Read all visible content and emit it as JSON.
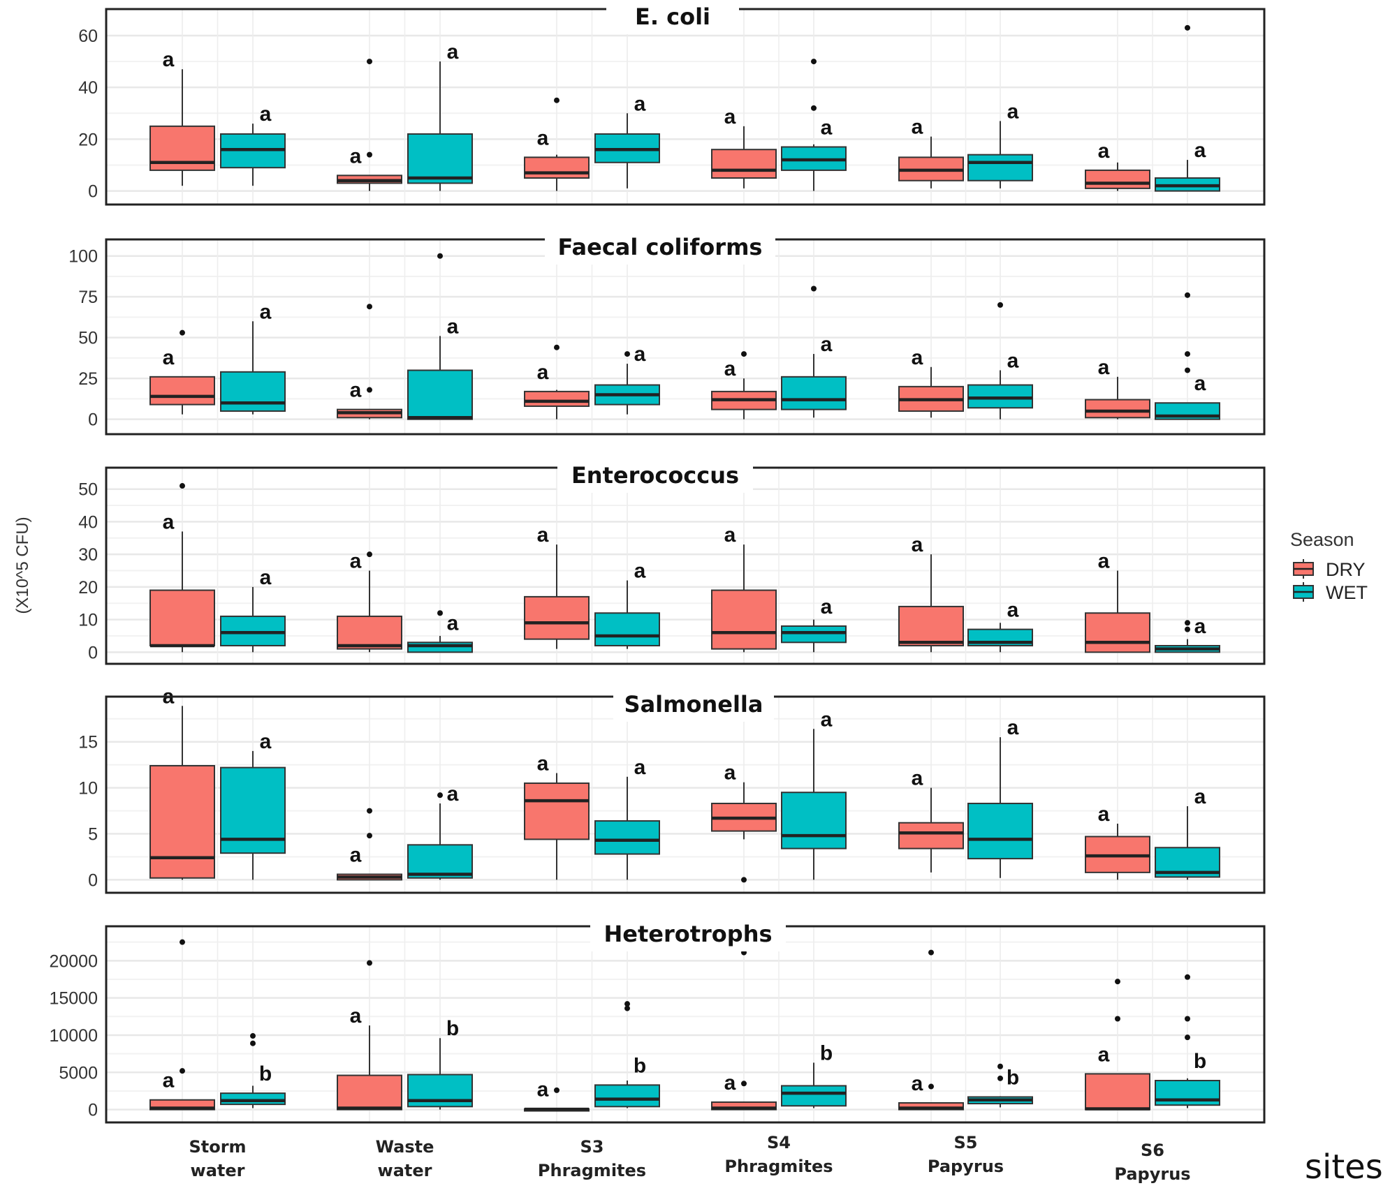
{
  "chart_data": {
    "type": "boxplot",
    "layout": "faceted-vertical",
    "ylabel": "(X10^5 CFU)",
    "xlabel": "sites",
    "legend": {
      "title": "Season",
      "position": "right",
      "entries": [
        {
          "name": "DRY",
          "color": "#F8766D"
        },
        {
          "name": "WET",
          "color": "#00BFC4"
        }
      ]
    },
    "categories": [
      "Storm\nwater",
      "Waste\nwater",
      "S3\nPhragmites",
      "S4\nPhragmites",
      "S5\nPapyrus",
      "S6\nPapyrus"
    ],
    "grid": true,
    "panels": [
      {
        "title": "E. coli",
        "ylim": [
          -2,
          67
        ],
        "yticks": [
          0,
          20,
          40,
          60
        ],
        "series": [
          {
            "name": "DRY",
            "boxes": [
              {
                "min": 2,
                "q1": 8,
                "median": 11,
                "q3": 25,
                "max": 47,
                "outliers": [],
                "letter": "a"
              },
              {
                "min": 0,
                "q1": 3,
                "median": 4,
                "q3": 6,
                "max": 6,
                "outliers": [
                  14,
                  50
                ],
                "letter": "a"
              },
              {
                "min": 0,
                "q1": 5,
                "median": 7,
                "q3": 13,
                "max": 14,
                "outliers": [
                  35
                ],
                "letter": "a"
              },
              {
                "min": 1,
                "q1": 5,
                "median": 8,
                "q3": 16,
                "max": 25,
                "outliers": [],
                "letter": "a"
              },
              {
                "min": 1,
                "q1": 4,
                "median": 8,
                "q3": 13,
                "max": 21,
                "outliers": [],
                "letter": "a"
              },
              {
                "min": 0,
                "q1": 1,
                "median": 3,
                "q3": 8,
                "max": 11,
                "outliers": [],
                "letter": "a"
              }
            ]
          },
          {
            "name": "WET",
            "boxes": [
              {
                "min": 2,
                "q1": 9,
                "median": 16,
                "q3": 22,
                "max": 26,
                "outliers": [],
                "letter": "a"
              },
              {
                "min": 0,
                "q1": 3,
                "median": 5,
                "q3": 22,
                "max": 50,
                "outliers": [],
                "letter": "a"
              },
              {
                "min": 1,
                "q1": 11,
                "median": 16,
                "q3": 22,
                "max": 30,
                "outliers": [],
                "letter": "a"
              },
              {
                "min": 0,
                "q1": 8,
                "median": 12,
                "q3": 17,
                "max": 18,
                "outliers": [
                  32,
                  50
                ],
                "letter": "a"
              },
              {
                "min": 1,
                "q1": 4,
                "median": 11,
                "q3": 14,
                "max": 27,
                "outliers": [],
                "letter": "a"
              },
              {
                "min": 0,
                "q1": 0,
                "median": 2,
                "q3": 5,
                "max": 12,
                "outliers": [
                  63
                ],
                "letter": "a"
              }
            ]
          }
        ]
      },
      {
        "title": "Faecal coliforms",
        "ylim": [
          -4,
          105
        ],
        "yticks": [
          0,
          25,
          50,
          75,
          100
        ],
        "series": [
          {
            "name": "DRY",
            "boxes": [
              {
                "min": 3,
                "q1": 9,
                "median": 14,
                "q3": 26,
                "max": 26,
                "outliers": [
                  53
                ],
                "letter": "a"
              },
              {
                "min": 0,
                "q1": 1,
                "median": 4,
                "q3": 6,
                "max": 6,
                "outliers": [
                  18,
                  69
                ],
                "letter": "a"
              },
              {
                "min": 0,
                "q1": 8,
                "median": 11,
                "q3": 17,
                "max": 18,
                "outliers": [
                  44
                ],
                "letter": "a"
              },
              {
                "min": 0,
                "q1": 6,
                "median": 12,
                "q3": 17,
                "max": 25,
                "outliers": [
                  40
                ],
                "letter": "a"
              },
              {
                "min": 1,
                "q1": 5,
                "median": 12,
                "q3": 20,
                "max": 32,
                "outliers": [],
                "letter": "a"
              },
              {
                "min": 0,
                "q1": 1,
                "median": 5,
                "q3": 12,
                "max": 26,
                "outliers": [],
                "letter": "a"
              }
            ]
          },
          {
            "name": "WET",
            "boxes": [
              {
                "min": 3,
                "q1": 5,
                "median": 10,
                "q3": 29,
                "max": 60,
                "outliers": [],
                "letter": "a"
              },
              {
                "min": 0,
                "q1": 0,
                "median": 1,
                "q3": 30,
                "max": 51,
                "outliers": [
                  100
                ],
                "letter": "a"
              },
              {
                "min": 3,
                "q1": 9,
                "median": 15,
                "q3": 21,
                "max": 34,
                "outliers": [
                  40
                ],
                "letter": "a"
              },
              {
                "min": 1,
                "q1": 6,
                "median": 12,
                "q3": 26,
                "max": 40,
                "outliers": [
                  80
                ],
                "letter": "a"
              },
              {
                "min": 0,
                "q1": 7,
                "median": 13,
                "q3": 21,
                "max": 30,
                "outliers": [
                  70
                ],
                "letter": "a"
              },
              {
                "min": 0,
                "q1": 0,
                "median": 2,
                "q3": 10,
                "max": 10,
                "outliers": [
                  30,
                  40,
                  76
                ],
                "letter": "a"
              }
            ]
          }
        ]
      },
      {
        "title": "Enterococcus",
        "ylim": [
          -1,
          54
        ],
        "yticks": [
          0,
          10,
          20,
          30,
          40,
          50
        ],
        "series": [
          {
            "name": "DRY",
            "boxes": [
              {
                "min": 0,
                "q1": 2,
                "median": 2,
                "q3": 19,
                "max": 37,
                "outliers": [
                  51
                ],
                "letter": "a"
              },
              {
                "min": 0,
                "q1": 1,
                "median": 2,
                "q3": 11,
                "max": 25,
                "outliers": [
                  30
                ],
                "letter": "a"
              },
              {
                "min": 1,
                "q1": 4,
                "median": 9,
                "q3": 17,
                "max": 33,
                "outliers": [],
                "letter": "a"
              },
              {
                "min": 0,
                "q1": 1,
                "median": 6,
                "q3": 19,
                "max": 33,
                "outliers": [],
                "letter": "a"
              },
              {
                "min": 0,
                "q1": 2,
                "median": 3,
                "q3": 14,
                "max": 30,
                "outliers": [],
                "letter": "a"
              },
              {
                "min": 0,
                "q1": 0,
                "median": 3,
                "q3": 12,
                "max": 25,
                "outliers": [],
                "letter": "a"
              }
            ]
          },
          {
            "name": "WET",
            "boxes": [
              {
                "min": 0,
                "q1": 2,
                "median": 6,
                "q3": 11,
                "max": 20,
                "outliers": [],
                "letter": "a"
              },
              {
                "min": 0,
                "q1": 0,
                "median": 2,
                "q3": 3,
                "max": 5,
                "outliers": [
                  12
                ],
                "letter": "a"
              },
              {
                "min": 1,
                "q1": 2,
                "median": 5,
                "q3": 12,
                "max": 22,
                "outliers": [],
                "letter": "a"
              },
              {
                "min": 0,
                "q1": 3,
                "median": 6,
                "q3": 8,
                "max": 10,
                "outliers": [],
                "letter": "a"
              },
              {
                "min": 0,
                "q1": 2,
                "median": 3,
                "q3": 7,
                "max": 9,
                "outliers": [],
                "letter": "a"
              },
              {
                "min": 0,
                "q1": 0,
                "median": 1,
                "q3": 2,
                "max": 4,
                "outliers": [
                  7,
                  9
                ],
                "letter": "a"
              }
            ]
          }
        ]
      },
      {
        "title": "Salmonella",
        "ylim": [
          -0.5,
          19
        ],
        "yticks": [
          0,
          5,
          10,
          15
        ],
        "series": [
          {
            "name": "DRY",
            "boxes": [
              {
                "min": 0,
                "q1": 0.2,
                "median": 2.4,
                "q3": 12.4,
                "max": 18.9,
                "outliers": [],
                "letter": "a"
              },
              {
                "min": 0,
                "q1": 0,
                "median": 0.3,
                "q3": 0.6,
                "max": 0.6,
                "outliers": [
                  4.8,
                  7.5
                ],
                "letter": "a"
              },
              {
                "min": 0,
                "q1": 4.4,
                "median": 8.6,
                "q3": 10.5,
                "max": 11.6,
                "outliers": [],
                "letter": "a"
              },
              {
                "min": 4.4,
                "q1": 5.3,
                "median": 6.7,
                "q3": 8.3,
                "max": 10.6,
                "outliers": [
                  0
                ],
                "letter": "a"
              },
              {
                "min": 0.8,
                "q1": 3.4,
                "median": 5.1,
                "q3": 6.2,
                "max": 10,
                "outliers": [],
                "letter": "a"
              },
              {
                "min": 0,
                "q1": 0.8,
                "median": 2.6,
                "q3": 4.7,
                "max": 6.1,
                "outliers": [],
                "letter": "a"
              }
            ]
          },
          {
            "name": "WET",
            "boxes": [
              {
                "min": 0,
                "q1": 2.9,
                "median": 4.4,
                "q3": 12.2,
                "max": 14,
                "outliers": [],
                "letter": "a"
              },
              {
                "min": 0,
                "q1": 0.2,
                "median": 0.6,
                "q3": 3.8,
                "max": 8.3,
                "outliers": [
                  9.2
                ],
                "letter": "a"
              },
              {
                "min": 0,
                "q1": 2.8,
                "median": 4.3,
                "q3": 6.4,
                "max": 11.2,
                "outliers": [],
                "letter": "a"
              },
              {
                "min": 0,
                "q1": 3.4,
                "median": 4.8,
                "q3": 9.5,
                "max": 16.4,
                "outliers": [],
                "letter": "a"
              },
              {
                "min": 0.2,
                "q1": 2.3,
                "median": 4.4,
                "q3": 8.3,
                "max": 15.5,
                "outliers": [],
                "letter": "a"
              },
              {
                "min": 0,
                "q1": 0.3,
                "median": 0.8,
                "q3": 3.5,
                "max": 8,
                "outliers": [],
                "letter": "a"
              }
            ]
          }
        ]
      },
      {
        "title": "Heterotrophs",
        "ylim": [
          -600,
          23500
        ],
        "yticks": [
          0,
          5000,
          10000,
          15000,
          20000
        ],
        "ytick_labels": [
          "0",
          "5000",
          "10000",
          "15000",
          "20000"
        ],
        "series": [
          {
            "name": "DRY",
            "boxes": [
              {
                "min": 0,
                "q1": 0,
                "median": 200,
                "q3": 1300,
                "max": 1300,
                "outliers": [
                  5200,
                  22500
                ],
                "letter": "a"
              },
              {
                "min": 0,
                "q1": 0,
                "median": 200,
                "q3": 4600,
                "max": 11300,
                "outliers": [
                  19700
                ],
                "letter": "a"
              },
              {
                "min": 0,
                "q1": 0,
                "median": 50,
                "q3": 100,
                "max": 100,
                "outliers": [
                  2600
                ],
                "letter": "a"
              },
              {
                "min": 0,
                "q1": 0,
                "median": 200,
                "q3": 1000,
                "max": 1000,
                "outliers": [
                  3500,
                  21100
                ],
                "letter": "a"
              },
              {
                "min": 0,
                "q1": 0,
                "median": 200,
                "q3": 900,
                "max": 900,
                "outliers": [
                  3100,
                  21100
                ],
                "letter": "a"
              },
              {
                "min": 0,
                "q1": 0,
                "median": 100,
                "q3": 4800,
                "max": 4800,
                "outliers": [
                  12200,
                  17200
                ],
                "letter": "a"
              }
            ]
          },
          {
            "name": "WET",
            "boxes": [
              {
                "min": 200,
                "q1": 700,
                "median": 1200,
                "q3": 2200,
                "max": 3200,
                "outliers": [
                  8900,
                  9900
                ],
                "letter": "b"
              },
              {
                "min": 0,
                "q1": 400,
                "median": 1200,
                "q3": 4700,
                "max": 9600,
                "outliers": [],
                "letter": "b"
              },
              {
                "min": 200,
                "q1": 400,
                "median": 1400,
                "q3": 3300,
                "max": 3900,
                "outliers": [
                  13600,
                  14200
                ],
                "letter": "b"
              },
              {
                "min": 200,
                "q1": 500,
                "median": 2200,
                "q3": 3200,
                "max": 6300,
                "outliers": [],
                "letter": "b"
              },
              {
                "min": 300,
                "q1": 800,
                "median": 1300,
                "q3": 1700,
                "max": 1800,
                "outliers": [
                  4200,
                  5800
                ],
                "letter": "b"
              },
              {
                "min": 200,
                "q1": 600,
                "median": 1300,
                "q3": 3900,
                "max": 4200,
                "outliers": [
                  9700,
                  12200,
                  17800
                ],
                "letter": "b"
              }
            ]
          }
        ]
      }
    ]
  }
}
